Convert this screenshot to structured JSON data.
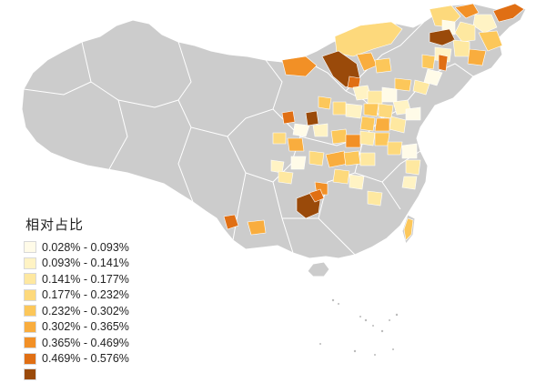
{
  "map": {
    "base_fill": "#cccccc",
    "border_color": "#ffffff",
    "ocean_color": "#ffffff"
  },
  "legend": {
    "title": "相对占比",
    "items": [
      {
        "label": "0.028% - 0.093%",
        "color": "#fffbe8"
      },
      {
        "label": "0.093% - 0.141%",
        "color": "#fff3c4"
      },
      {
        "label": "0.141% - 0.177%",
        "color": "#fee8a0"
      },
      {
        "label": "0.177% - 0.232%",
        "color": "#fdd97c"
      },
      {
        "label": "0.232% - 0.302%",
        "color": "#fcc75a"
      },
      {
        "label": "0.302% - 0.365%",
        "color": "#f9ad3e"
      },
      {
        "label": "0.365% - 0.469%",
        "color": "#f29026"
      },
      {
        "label": "0.469% - 0.576%",
        "color": "#e06f14"
      },
      {
        "label": "",
        "color": "#9a4a0a"
      }
    ]
  }
}
